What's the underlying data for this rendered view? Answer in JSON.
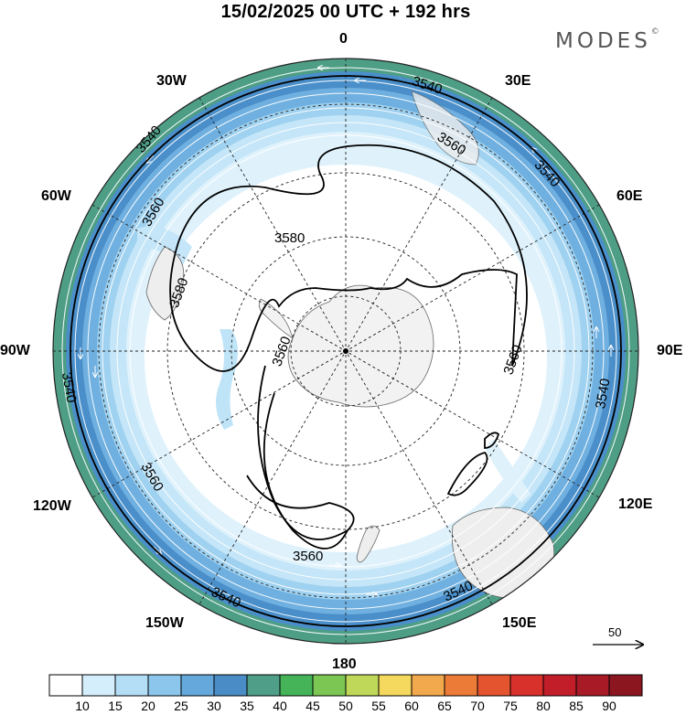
{
  "header": {
    "title": "15/02/2025  00 UTC  + 192 hrs",
    "brand": "MODES",
    "brand_mark": "©"
  },
  "map": {
    "projection": "south-polar-stereographic",
    "longitude_labels": {
      "lon_0": "0",
      "lon_30e": "30E",
      "lon_60e": "60E",
      "lon_90e": "90E",
      "lon_120e": "120E",
      "lon_150e": "150E",
      "lon_180": "180",
      "lon_150w": "150W",
      "lon_120w": "120W",
      "lon_90w": "90W",
      "lon_60w": "60W",
      "lon_30w": "30W"
    },
    "contour_labels": {
      "c3540_a": "3540",
      "c3540_b": "3540",
      "c3540_c": "3540",
      "c3540_d": "3540",
      "c3540_e": "3540",
      "c3540_f": "3540",
      "c3560_a": "3560",
      "c3560_b": "3560",
      "c3560_c": "3560",
      "c3560_d": "3560",
      "c3560_e": "3560",
      "c3560_f": "3560",
      "c3580_a": "3580",
      "c3580_b": "3580"
    },
    "wind_reference": "50",
    "shading_colors": [
      "#ffffff",
      "#dff2fc",
      "#c4e6f8",
      "#9fd1f0",
      "#6fb0e0",
      "#4a8fca",
      "#4e9e86"
    ]
  },
  "colorbar": {
    "colors": [
      "#ffffff",
      "#d4eefc",
      "#b4def6",
      "#8cc6ec",
      "#64a8dc",
      "#4a8cc6",
      "#4e9e88",
      "#45b459",
      "#7cc653",
      "#bfd859",
      "#f4d95e",
      "#f2a84c",
      "#ec7b38",
      "#e4542e",
      "#d8312c",
      "#c21e2a",
      "#a81a26",
      "#8c1620"
    ],
    "ticks": [
      "10",
      "15",
      "20",
      "25",
      "30",
      "35",
      "40",
      "45",
      "50",
      "55",
      "60",
      "65",
      "70",
      "75",
      "80",
      "85",
      "90"
    ]
  }
}
